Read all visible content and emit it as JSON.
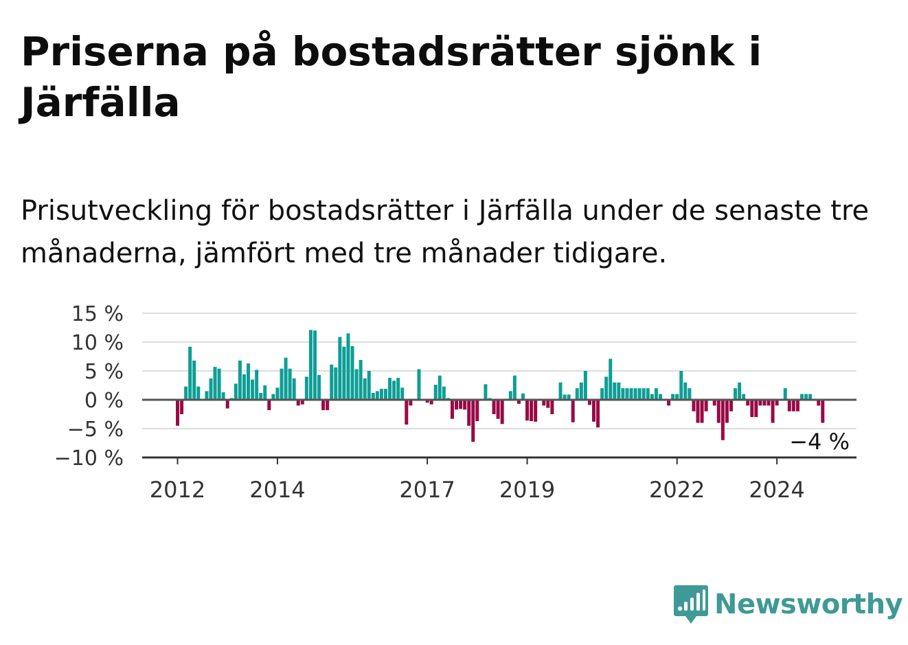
{
  "title": "Priserna på bostadsrätter sjönk i Järfälla",
  "subtitle": "Prisutveckling för bostadsrätter i Järfälla under de senaste tre månaderna, jämfört med tre månader tidigare.",
  "brand": {
    "name": "Newsworthy",
    "icon": "newsworthy-logo-icon"
  },
  "colors": {
    "positive": "#0e9e96",
    "negative": "#990a46",
    "grid": "#dddddd",
    "baseline": "#555555",
    "brand": "#3f9a96"
  },
  "chart_data": {
    "type": "bar",
    "y_ticks": [
      "15 %",
      "10 %",
      "5 %",
      "0 %",
      "−5 %",
      "−10 %"
    ],
    "y_tick_values": [
      15,
      10,
      5,
      0,
      -5,
      -10
    ],
    "ylim": [
      -10,
      15
    ],
    "x_ticks": [
      {
        "label": "2012",
        "date": "2012-01"
      },
      {
        "label": "2014",
        "date": "2014-01"
      },
      {
        "label": "2017",
        "date": "2017-01"
      },
      {
        "label": "2019",
        "date": "2019-01"
      },
      {
        "label": "2022",
        "date": "2022-01"
      },
      {
        "label": "2024",
        "date": "2024-01"
      }
    ],
    "start_date": "2012-01",
    "values": [
      -4.5,
      -2.5,
      2.3,
      9.2,
      6.8,
      2.3,
      0,
      1.5,
      3.7,
      5.7,
      5.4,
      1.3,
      -1.5,
      0.3,
      2.8,
      6.8,
      4.4,
      6.3,
      3.5,
      5.2,
      1.2,
      2.5,
      -1.8,
      1.0,
      2.1,
      5.4,
      7.3,
      5.4,
      3.7,
      -1.0,
      -0.8,
      4.0,
      12.1,
      12.0,
      4.3,
      -1.8,
      -1.8,
      6.1,
      5.6,
      10.9,
      9.2,
      11.5,
      9.3,
      5.3,
      6.9,
      3.7,
      5.0,
      1.2,
      1.5,
      1.9,
      1.9,
      3.8,
      3.3,
      3.8,
      2.1,
      -4.3,
      -1.0,
      0,
      5.3,
      0,
      -0.5,
      -0.8,
      2.6,
      4.2,
      2.3,
      0.3,
      -3.3,
      -1.7,
      -1.6,
      -1.7,
      -4.5,
      -7.3,
      -3.7,
      0,
      2.7,
      0.3,
      -2.5,
      -3.3,
      -4.2,
      0,
      1.5,
      4.2,
      -0.7,
      1.1,
      -3.6,
      -3.7,
      -3.8,
      0,
      -1.0,
      -1.4,
      -2.5,
      0,
      3.0,
      0.9,
      0.9,
      -3.9,
      2.0,
      3.0,
      5.0,
      -0.9,
      -3.8,
      -4.8,
      2.0,
      4.0,
      7.1,
      3.0,
      3.0,
      2.0,
      2.0,
      2.0,
      2.0,
      2.0,
      2.0,
      2.0,
      1.0,
      2.0,
      1.0,
      0,
      -1.0,
      1.0,
      1.0,
      5.0,
      3.0,
      2.0,
      -2.0,
      -4.0,
      -4.0,
      -2.0,
      0,
      -1.0,
      -4.0,
      -7.0,
      -4.0,
      -2.0,
      2.0,
      3.0,
      1.0,
      -1.0,
      -3.0,
      -3.0,
      -1.0,
      -1.0,
      -1.0,
      -4.0,
      -1.0,
      0,
      2.0,
      -2.0,
      -2.0,
      -2.0,
      1.0,
      1.0,
      1.0,
      0,
      -1.0,
      -4.0
    ],
    "last_value_label": "−4 %",
    "grid": true,
    "legend": "none"
  }
}
